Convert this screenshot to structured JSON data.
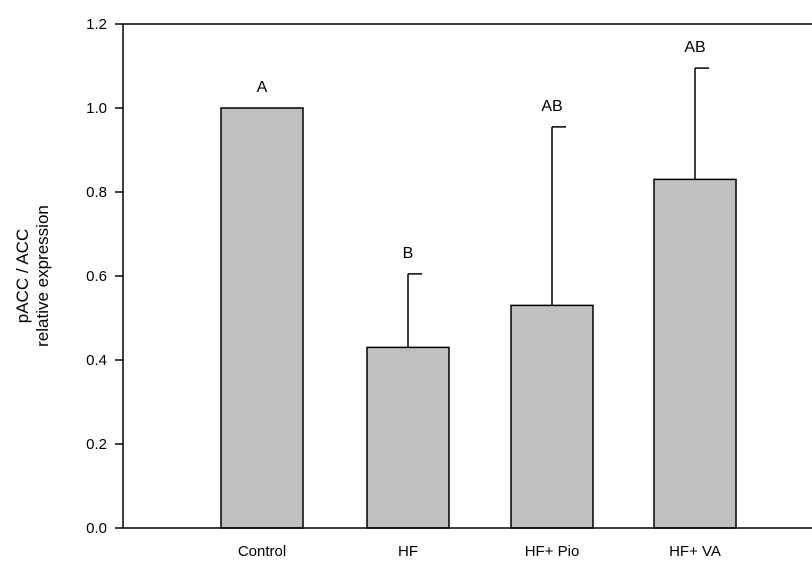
{
  "chart_data": {
    "type": "bar",
    "title": "",
    "xlabel": "",
    "ylabel_lines": [
      "pACC / ACC",
      "relative expression"
    ],
    "categories": [
      "Control",
      "HF",
      "HF+ Pio",
      "HF+ VA"
    ],
    "values": [
      1.0,
      0.43,
      0.53,
      0.83
    ],
    "error_plus": [
      0.0,
      0.175,
      0.425,
      0.265
    ],
    "significance_letters": [
      "A",
      "B",
      "AB",
      "AB"
    ],
    "ylim": [
      0,
      1.2
    ],
    "yticks": [
      0.0,
      0.2,
      0.4,
      0.6,
      0.8,
      1.0,
      1.2
    ],
    "ytick_labels": [
      "0.0",
      "0.2",
      "0.4",
      "0.6",
      "0.8",
      "1.0",
      "1.2"
    ],
    "grid": false,
    "legend": "none",
    "bar_color": "#c0c0c0",
    "axis_color": "#000000"
  }
}
